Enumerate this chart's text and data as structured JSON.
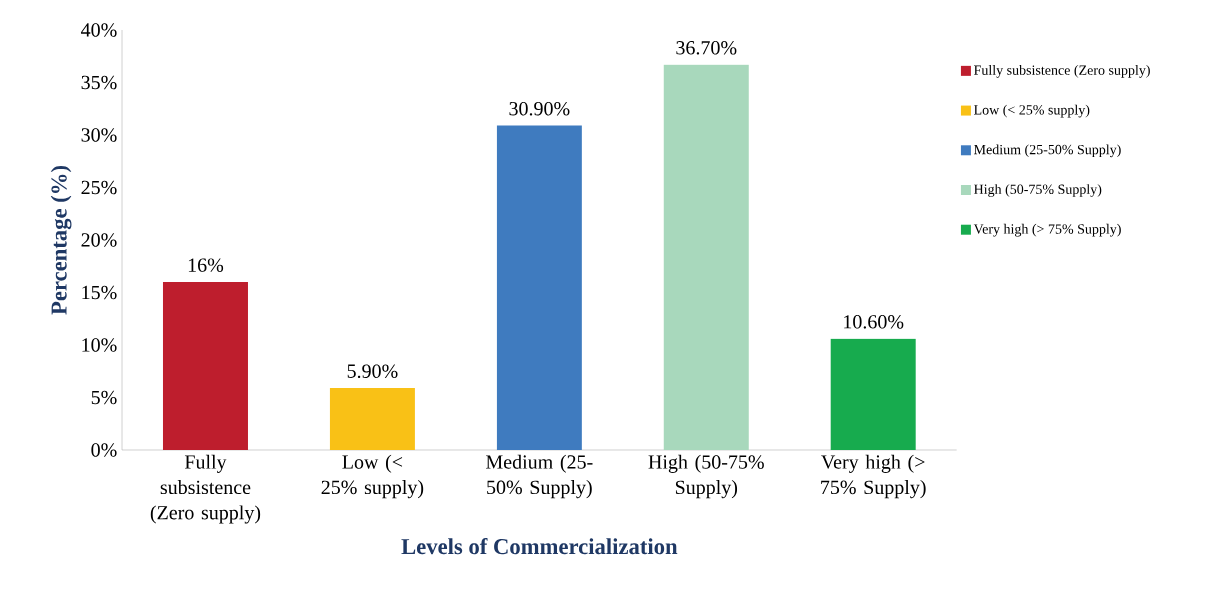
{
  "chart_data": {
    "type": "bar",
    "xlabel": "Levels of Commercialization",
    "ylabel": "Percentage (%)",
    "categories": [
      "Fully subsistence (Zero supply)",
      "Low (< 25% supply)",
      "Medium (25-50% Supply)",
      "High (50-75% Supply)",
      "Very high (> 75% Supply)"
    ],
    "series": [
      {
        "name": "Fully subsistence (Zero supply)",
        "color": "#be1e2d",
        "values": [
          16,
          null,
          null,
          null,
          null
        ],
        "value_labels": [
          "16%",
          null,
          null,
          null,
          null
        ]
      },
      {
        "name": "Low (< 25% supply)",
        "color": "#f9c116",
        "values": [
          null,
          5.9,
          null,
          null,
          null
        ],
        "value_labels": [
          null,
          "5.90%",
          null,
          null,
          null
        ]
      },
      {
        "name": "Medium (25-50% Supply)",
        "color": "#3f7bbf",
        "values": [
          null,
          null,
          30.9,
          null,
          null
        ],
        "value_labels": [
          null,
          null,
          "30.90%",
          null,
          null
        ]
      },
      {
        "name": "High (50-75% Supply)",
        "color": "#a8d8bc",
        "values": [
          null,
          null,
          null,
          36.7,
          null
        ],
        "value_labels": [
          null,
          null,
          null,
          "36.70%",
          null
        ]
      },
      {
        "name": "Very high (> 75% Supply)",
        "color": "#17ab4e",
        "values": [
          null,
          null,
          null,
          null,
          10.6
        ],
        "value_labels": [
          null,
          null,
          null,
          null,
          "10.60%"
        ]
      }
    ],
    "ylim": [
      0,
      40
    ],
    "yticks": [
      {
        "value": 0,
        "label": "0%"
      },
      {
        "value": 5,
        "label": "5%"
      },
      {
        "value": 10,
        "label": "10%"
      },
      {
        "value": 15,
        "label": "15%"
      },
      {
        "value": 20,
        "label": "20%"
      },
      {
        "value": 25,
        "label": "25%"
      },
      {
        "value": 30,
        "label": "30%"
      },
      {
        "value": 35,
        "label": "35%"
      },
      {
        "value": 40,
        "label": "40%"
      }
    ],
    "legend": "right"
  }
}
